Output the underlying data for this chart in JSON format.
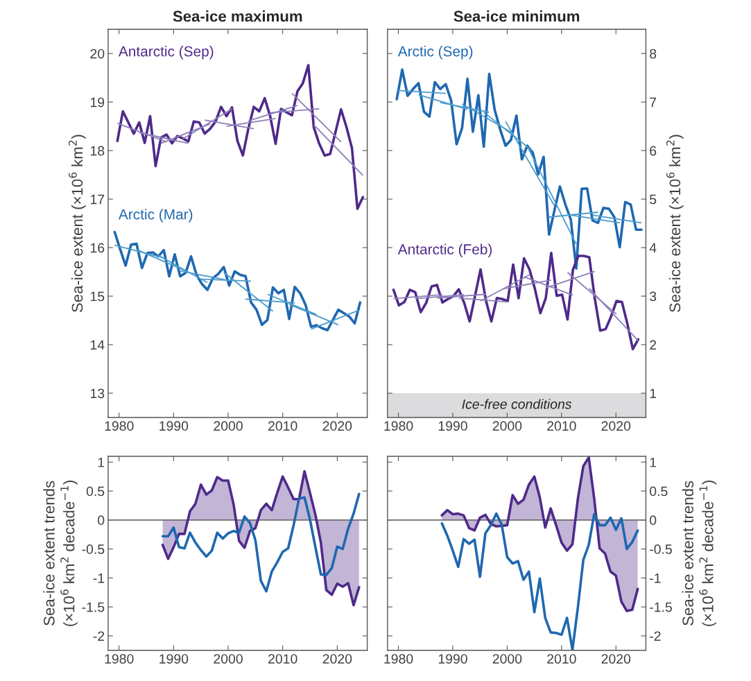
{
  "chart_data": [
    {
      "type": "line",
      "title": "Sea-ice maximum",
      "ylabel": "Sea-ice extent (×10$^{6}$ km$^{2}$)",
      "xlim": [
        1978,
        2025.5
      ],
      "ylim": [
        12.5,
        20.5
      ],
      "xticks": [
        1980,
        1990,
        2000,
        2010,
        2020
      ],
      "yticks": [
        13,
        14,
        15,
        16,
        17,
        18,
        19,
        20
      ],
      "line_style": "solid",
      "series": [
        {
          "name": "Antarctic (Sep)",
          "color": "#4f2a8a",
          "x": [
            1979.7,
            1980.7,
            1981.7,
            1982.7,
            1983.7,
            1984.7,
            1985.7,
            1986.7,
            1987.7,
            1988.7,
            1989.7,
            1990.7,
            1991.7,
            1992.7,
            1993.7,
            1994.7,
            1995.7,
            1996.7,
            1997.7,
            1998.7,
            1999.7,
            2000.7,
            2001.7,
            2002.7,
            2003.7,
            2004.7,
            2005.7,
            2006.7,
            2007.7,
            2008.7,
            2009.7,
            2010.7,
            2011.7,
            2012.7,
            2013.7,
            2014.7,
            2015.7,
            2016.7,
            2017.7,
            2018.7,
            2019.7,
            2020.7,
            2021.7,
            2022.7,
            2023.7,
            2024.7
          ],
          "values": [
            18.2,
            18.81,
            18.58,
            18.35,
            18.58,
            18.16,
            18.71,
            17.68,
            18.27,
            18.33,
            18.15,
            18.3,
            18.25,
            18.19,
            18.6,
            18.58,
            18.35,
            18.45,
            18.6,
            18.9,
            18.71,
            18.89,
            18.2,
            17.9,
            18.45,
            18.9,
            18.81,
            19.08,
            18.71,
            18.14,
            18.86,
            18.79,
            18.73,
            19.22,
            19.39,
            19.76,
            18.48,
            18.14,
            17.9,
            17.93,
            18.39,
            18.85,
            18.48,
            18.05,
            16.8,
            17.04
          ]
        },
        {
          "name": "Arctic (Mar)",
          "color": "#1f68b0",
          "x": [
            1979.2,
            1980.2,
            1981.2,
            1982.2,
            1983.2,
            1984.2,
            1985.2,
            1986.2,
            1987.2,
            1988.2,
            1989.2,
            1990.2,
            1991.2,
            1992.2,
            1993.2,
            1994.2,
            1995.2,
            1996.2,
            1997.2,
            1998.2,
            1999.2,
            2000.2,
            2001.2,
            2002.2,
            2003.2,
            2004.2,
            2005.2,
            2006.2,
            2007.2,
            2008.2,
            2009.2,
            2010.2,
            2011.2,
            2012.2,
            2013.2,
            2014.2,
            2015.2,
            2016.2,
            2017.2,
            2018.2,
            2019.2,
            2020.2,
            2021.2,
            2022.2,
            2023.2,
            2024.2
          ],
          "values": [
            16.32,
            15.97,
            15.63,
            16.06,
            16.08,
            15.58,
            15.89,
            15.9,
            15.82,
            15.95,
            15.41,
            15.86,
            15.41,
            15.48,
            15.82,
            15.44,
            15.25,
            15.13,
            15.37,
            15.46,
            15.6,
            15.22,
            15.51,
            15.44,
            15.41,
            14.87,
            14.72,
            14.41,
            14.51,
            15.18,
            15.06,
            15.13,
            14.53,
            15.19,
            15.06,
            14.82,
            14.37,
            14.4,
            14.34,
            14.3,
            14.51,
            14.72,
            14.65,
            14.58,
            14.44,
            14.87
          ]
        },
        {
          "type": "line",
          "color": "#8a80ba",
          "x": [
            1979.7,
            1988.7
          ],
          "values": [
            18.56,
            18.18
          ]
        },
        {
          "type": "line",
          "color": "#8a80ba",
          "x": [
            1983.7,
            1992.7
          ],
          "values": [
            18.37,
            18.15
          ]
        },
        {
          "type": "line",
          "color": "#8a80ba",
          "x": [
            1987.7,
            1996.7
          ],
          "values": [
            18.15,
            18.55
          ]
        },
        {
          "type": "line",
          "color": "#8a80ba",
          "x": [
            1991.7,
            2000.7
          ],
          "values": [
            18.24,
            18.86
          ]
        },
        {
          "type": "line",
          "color": "#8a80ba",
          "x": [
            1995.7,
            2004.7
          ],
          "values": [
            18.63,
            18.45
          ]
        },
        {
          "type": "line",
          "color": "#8a80ba",
          "x": [
            1999.7,
            2008.7
          ],
          "values": [
            18.5,
            18.66
          ]
        },
        {
          "type": "line",
          "color": "#8a80ba",
          "x": [
            2003.7,
            2012.7
          ],
          "values": [
            18.61,
            18.93
          ]
        },
        {
          "type": "line",
          "color": "#8a80ba",
          "x": [
            2007.7,
            2016.7
          ],
          "values": [
            18.78,
            18.86
          ]
        },
        {
          "type": "line",
          "color": "#8a80ba",
          "x": [
            2011.7,
            2020.7
          ],
          "values": [
            19.18,
            18.18
          ]
        },
        {
          "type": "line",
          "color": "#8a80ba",
          "x": [
            2015.7,
            2024.7
          ],
          "values": [
            18.53,
            17.49
          ]
        },
        {
          "type": "line",
          "color": "#4a9ccc",
          "x": [
            1979.2,
            1988.2
          ],
          "values": [
            16.05,
            15.79
          ]
        },
        {
          "type": "line",
          "color": "#4a9ccc",
          "x": [
            1983.2,
            1992.2
          ],
          "values": [
            15.96,
            15.52
          ]
        },
        {
          "type": "line",
          "color": "#4a9ccc",
          "x": [
            1987.2,
            1996.2
          ],
          "values": [
            15.84,
            15.28
          ]
        },
        {
          "type": "line",
          "color": "#4a9ccc",
          "x": [
            1991.2,
            2000.2
          ],
          "values": [
            15.52,
            15.32
          ]
        },
        {
          "type": "line",
          "color": "#4a9ccc",
          "x": [
            1995.2,
            2004.2
          ],
          "values": [
            15.35,
            15.31
          ]
        },
        {
          "type": "line",
          "color": "#4a9ccc",
          "x": [
            1999.2,
            2008.2
          ],
          "values": [
            15.49,
            14.69
          ]
        },
        {
          "type": "line",
          "color": "#4a9ccc",
          "x": [
            2003.2,
            2012.2
          ],
          "values": [
            14.94,
            14.86
          ]
        },
        {
          "type": "line",
          "color": "#4a9ccc",
          "x": [
            2007.2,
            2016.2
          ],
          "values": [
            15.04,
            14.62
          ]
        },
        {
          "type": "line",
          "color": "#4a9ccc",
          "x": [
            2011.2,
            2020.2
          ],
          "values": [
            14.83,
            14.41
          ]
        },
        {
          "type": "line",
          "color": "#4a9ccc",
          "x": [
            2015.2,
            2024.2
          ],
          "values": [
            14.32,
            14.72
          ]
        }
      ]
    },
    {
      "type": "line",
      "title": "Sea-ice minimum",
      "ylabel": "Sea-ice extent (×10$^{6}$ km$^{2}$)",
      "xlim": [
        1978,
        2025.5
      ],
      "ylim": [
        0.5,
        8.5
      ],
      "xticks": [
        1980,
        1990,
        2000,
        2010,
        2020
      ],
      "yticks": [
        1,
        2,
        3,
        4,
        5,
        6,
        7,
        8
      ],
      "line_style": "solid",
      "bands": [
        {
          "axis": "y",
          "from": 0.5,
          "to": 1,
          "label": "Ice-free conditions",
          "color": "#dcdcde"
        }
      ],
      "series": [
        {
          "name": "Arctic (Sep)",
          "color": "#1f68b0",
          "x": [
            1979.7,
            1980.7,
            1981.7,
            1982.7,
            1983.7,
            1984.7,
            1985.7,
            1986.7,
            1987.7,
            1988.7,
            1989.7,
            1990.7,
            1991.7,
            1992.7,
            1993.7,
            1994.7,
            1995.7,
            1996.7,
            1997.7,
            1998.7,
            1999.7,
            2000.7,
            2001.7,
            2002.7,
            2003.7,
            2004.7,
            2005.7,
            2006.7,
            2007.7,
            2008.7,
            2009.7,
            2010.7,
            2011.7,
            2012.7,
            2013.7,
            2014.7,
            2015.7,
            2016.7,
            2017.7,
            2018.7,
            2019.7,
            2020.7,
            2021.7,
            2022.7,
            2023.7,
            2024.7
          ],
          "values": [
            7.06,
            7.67,
            7.13,
            7.27,
            7.39,
            6.8,
            6.7,
            7.41,
            7.27,
            7.37,
            7.03,
            6.13,
            6.46,
            7.48,
            6.39,
            7.14,
            6.08,
            7.58,
            6.84,
            6.44,
            6.1,
            6.22,
            6.72,
            5.82,
            6.1,
            5.96,
            5.51,
            5.87,
            4.27,
            4.77,
            5.26,
            4.89,
            4.58,
            3.57,
            5.21,
            5.22,
            4.56,
            4.51,
            4.82,
            4.8,
            4.63,
            4.01,
            4.94,
            4.89,
            4.37,
            4.37
          ]
        },
        {
          "name": "Antarctic (Feb)",
          "color": "#4f2a8a",
          "x": [
            1979.1,
            1980.1,
            1981.1,
            1982.1,
            1983.1,
            1984.1,
            1985.1,
            1986.1,
            1987.1,
            1988.1,
            1989.1,
            1990.1,
            1991.1,
            1992.1,
            1993.1,
            1994.1,
            1995.1,
            1996.1,
            1997.1,
            1998.1,
            1999.1,
            2000.1,
            2001.1,
            2002.1,
            2003.1,
            2004.1,
            2005.1,
            2006.1,
            2007.1,
            2008.1,
            2009.1,
            2010.1,
            2011.1,
            2012.1,
            2013.1,
            2014.1,
            2015.1,
            2016.1,
            2017.1,
            2018.1,
            2019.1,
            2020.1,
            2021.1,
            2022.1,
            2023.1,
            2024.1
          ],
          "values": [
            3.13,
            2.81,
            2.88,
            3.13,
            3.08,
            2.67,
            2.86,
            3.2,
            3.23,
            2.87,
            2.94,
            3.0,
            3.14,
            2.86,
            2.48,
            3.01,
            3.55,
            2.91,
            2.48,
            2.96,
            2.94,
            2.9,
            3.65,
            2.96,
            3.78,
            3.55,
            3.15,
            2.65,
            2.96,
            3.89,
            3.01,
            3.03,
            2.52,
            3.55,
            3.83,
            3.83,
            3.8,
            2.96,
            2.29,
            2.32,
            2.58,
            2.9,
            2.88,
            2.43,
            1.91,
            2.11
          ]
        },
        {
          "type": "line",
          "color": "#4a9ccc",
          "x": [
            1979.7,
            1988.7
          ],
          "values": [
            7.24,
            7.18
          ]
        },
        {
          "type": "line",
          "color": "#4a9ccc",
          "x": [
            1983.7,
            1992.7
          ],
          "values": [
            7.15,
            6.85
          ]
        },
        {
          "type": "line",
          "color": "#4a9ccc",
          "x": [
            1987.7,
            1996.7
          ],
          "values": [
            6.99,
            6.79
          ]
        },
        {
          "type": "line",
          "color": "#4a9ccc",
          "x": [
            1991.7,
            2000.7
          ],
          "values": [
            6.96,
            6.38
          ]
        },
        {
          "type": "line",
          "color": "#4a9ccc",
          "x": [
            1995.7,
            2004.7
          ],
          "values": [
            6.79,
            5.99
          ]
        },
        {
          "type": "line",
          "color": "#4a9ccc",
          "x": [
            1999.7,
            2008.7
          ],
          "values": [
            6.6,
            4.86
          ]
        },
        {
          "type": "line",
          "color": "#4a9ccc",
          "x": [
            2003.7,
            2012.7
          ],
          "values": [
            6.09,
            4.07
          ]
        },
        {
          "type": "line",
          "color": "#4a9ccc",
          "x": [
            2007.7,
            2016.7
          ],
          "values": [
            4.63,
            4.73
          ]
        },
        {
          "type": "line",
          "color": "#4a9ccc",
          "x": [
            2011.7,
            2020.7
          ],
          "values": [
            4.67,
            4.51
          ]
        },
        {
          "type": "line",
          "color": "#4a9ccc",
          "x": [
            2015.7,
            2024.7
          ],
          "values": [
            4.67,
            4.51
          ]
        },
        {
          "type": "line",
          "color": "#8a80ba",
          "x": [
            1979.1,
            1988.1
          ],
          "values": [
            2.95,
            3.03
          ]
        },
        {
          "type": "line",
          "color": "#8a80ba",
          "x": [
            1983.1,
            1992.1
          ],
          "values": [
            2.95,
            3.03
          ]
        },
        {
          "type": "line",
          "color": "#8a80ba",
          "x": [
            1987.1,
            1996.1
          ],
          "values": [
            2.96,
            3.04
          ]
        },
        {
          "type": "line",
          "color": "#8a80ba",
          "x": [
            1991.1,
            2000.1
          ],
          "values": [
            2.96,
            2.88
          ]
        },
        {
          "type": "line",
          "color": "#8a80ba",
          "x": [
            1995.1,
            2004.1
          ],
          "values": [
            2.9,
            3.44
          ]
        },
        {
          "type": "line",
          "color": "#8a80ba",
          "x": [
            1999.1,
            2008.1
          ],
          "values": [
            3.15,
            3.33
          ]
        },
        {
          "type": "line",
          "color": "#8a80ba",
          "x": [
            2003.1,
            2012.1
          ],
          "values": [
            3.4,
            3.02
          ]
        },
        {
          "type": "line",
          "color": "#8a80ba",
          "x": [
            2007.1,
            2016.1
          ],
          "values": [
            3.17,
            3.51
          ]
        },
        {
          "type": "line",
          "color": "#8a80ba",
          "x": [
            2011.1,
            2020.1
          ],
          "values": [
            3.49,
            2.63
          ]
        },
        {
          "type": "line",
          "color": "#8a80ba",
          "x": [
            2015.1,
            2024.1
          ],
          "values": [
            3.16,
            2.08
          ]
        }
      ]
    },
    {
      "type": "line",
      "ylabel": "Sea-ice extent trends\n(×10$^{6}$ km$^{2}$ decade$^{−1}$)",
      "xlim": [
        1978,
        2025.5
      ],
      "ylim": [
        -2.25,
        1.1
      ],
      "xticks": [
        1980,
        1990,
        2000,
        2010,
        2020
      ],
      "yticks": [
        -2,
        -1.5,
        -1,
        -0.5,
        0,
        0.5,
        1
      ],
      "line_style": "solid",
      "ref_lines": [
        {
          "axis": "y",
          "value": 0,
          "color": "#6e6e6e"
        }
      ],
      "series": [
        {
          "color": "#4f2a8a",
          "lower": [
            0,
            0,
            0,
            0,
            0,
            0,
            0,
            0,
            0,
            0,
            0,
            0,
            0,
            0,
            0,
            0,
            0,
            0,
            0,
            0,
            0,
            0,
            0,
            0,
            0,
            0,
            0,
            0,
            0,
            0,
            0,
            0,
            0,
            0,
            0,
            0,
            0
          ],
          "upper": [
            -0.43,
            -0.67,
            -0.47,
            -0.24,
            -0.24,
            0.15,
            0.28,
            0.61,
            0.44,
            0.51,
            0.74,
            0.68,
            0.68,
            0.27,
            -0.36,
            -0.48,
            -0.19,
            -0.14,
            0.17,
            0.28,
            0.17,
            0.47,
            0.75,
            0.56,
            0.36,
            0.36,
            0.84,
            0.47,
            0.09,
            -0.39,
            -1.21,
            -1.29,
            -1.1,
            -1.15,
            -1.09,
            -1.47,
            -1.16
          ],
          "x": [
            1988,
            1989,
            1990,
            1991,
            1992,
            1993,
            1994,
            1995,
            1996,
            1997,
            1998,
            1999,
            2000,
            2001,
            2002,
            2003,
            2004,
            2005,
            2006,
            2007,
            2008,
            2009,
            2010,
            2011,
            2012,
            2013,
            2014,
            2015,
            2016,
            2017,
            2018,
            2019,
            2020,
            2021,
            2022,
            2023,
            2024
          ],
          "values": [
            -0.43,
            -0.67,
            -0.47,
            -0.24,
            -0.24,
            0.15,
            0.28,
            0.61,
            0.44,
            0.51,
            0.74,
            0.68,
            0.68,
            0.27,
            -0.36,
            -0.48,
            -0.19,
            -0.14,
            0.17,
            0.28,
            0.17,
            0.47,
            0.75,
            0.56,
            0.36,
            0.36,
            0.84,
            0.47,
            0.09,
            -0.39,
            -1.21,
            -1.29,
            -1.1,
            -1.15,
            -1.09,
            -1.47,
            -1.16
          ]
        },
        {
          "color": "#1f68b0",
          "x": [
            1988,
            1989,
            1990,
            1991,
            1992,
            1993,
            1994,
            1995,
            1996,
            1997,
            1998,
            1999,
            2000,
            2001,
            2002,
            2003,
            2004,
            2005,
            2006,
            2007,
            2008,
            2009,
            2010,
            2011,
            2012,
            2013,
            2014,
            2015,
            2016,
            2017,
            2018,
            2019,
            2020,
            2021,
            2022,
            2023,
            2024
          ],
          "values": [
            -0.28,
            -0.28,
            -0.13,
            -0.47,
            -0.49,
            -0.22,
            -0.39,
            -0.52,
            -0.63,
            -0.53,
            -0.22,
            -0.32,
            -0.23,
            -0.19,
            -0.22,
            0.06,
            -0.05,
            -0.35,
            -1.05,
            -1.23,
            -0.89,
            -0.73,
            -0.55,
            -0.49,
            -0.09,
            0.37,
            0.39,
            0.01,
            -0.47,
            -0.94,
            -0.95,
            -0.83,
            -0.46,
            -0.5,
            -0.15,
            0.11,
            0.45
          ]
        }
      ]
    },
    {
      "type": "line",
      "ylabel": "Sea-ice extent trends\n(×10$^{6}$ km$^{2}$ decade$^{−1}$)",
      "xlim": [
        1978,
        2025.5
      ],
      "ylim": [
        -2.25,
        1.1
      ],
      "xticks": [
        1980,
        1990,
        2000,
        2010,
        2020
      ],
      "yticks": [
        -2,
        -1.5,
        -1,
        -0.5,
        0,
        0.5,
        1
      ],
      "line_style": "solid",
      "ref_lines": [
        {
          "axis": "y",
          "value": 0,
          "color": "#6e6e6e"
        }
      ],
      "series": [
        {
          "color": "#4f2a8a",
          "lower": [
            0,
            0,
            0,
            0,
            0,
            0,
            0,
            0,
            0,
            0,
            0,
            0,
            0,
            0,
            0,
            0,
            0,
            0,
            0,
            0,
            0,
            0,
            0,
            0,
            0,
            0,
            0,
            0,
            0,
            0,
            0,
            0,
            0,
            0,
            0,
            0,
            0
          ],
          "upper": [
            0.08,
            0.17,
            0.1,
            0.11,
            0.08,
            -0.14,
            -0.18,
            0.04,
            0.09,
            -0.07,
            -0.11,
            -0.1,
            -0.09,
            0.43,
            0.28,
            0.35,
            0.61,
            0.75,
            0.39,
            -0.13,
            0.2,
            -0.09,
            -0.39,
            -0.53,
            -0.42,
            0.37,
            0.93,
            1.08,
            0.37,
            -0.49,
            -0.58,
            -0.89,
            -0.96,
            -1.41,
            -1.57,
            -1.55,
            -1.19
          ],
          "x": [
            1988,
            1989,
            1990,
            1991,
            1992,
            1993,
            1994,
            1995,
            1996,
            1997,
            1998,
            1999,
            2000,
            2001,
            2002,
            2003,
            2004,
            2005,
            2006,
            2007,
            2008,
            2009,
            2010,
            2011,
            2012,
            2013,
            2014,
            2015,
            2016,
            2017,
            2018,
            2019,
            2020,
            2021,
            2022,
            2023,
            2024
          ],
          "values": [
            0.08,
            0.17,
            0.1,
            0.11,
            0.08,
            -0.14,
            -0.18,
            0.04,
            0.09,
            -0.07,
            -0.11,
            -0.1,
            -0.09,
            0.43,
            0.28,
            0.35,
            0.61,
            0.75,
            0.39,
            -0.13,
            0.2,
            -0.09,
            -0.39,
            -0.53,
            -0.42,
            0.37,
            0.93,
            1.08,
            0.37,
            -0.49,
            -0.58,
            -0.89,
            -0.96,
            -1.41,
            -1.57,
            -1.55,
            -1.19
          ]
        },
        {
          "color": "#1f68b0",
          "x": [
            1988,
            1989,
            1990,
            1991,
            1992,
            1993,
            1994,
            1995,
            1996,
            1997,
            1998,
            1999,
            2000,
            2001,
            2002,
            2003,
            2004,
            2005,
            2006,
            2007,
            2008,
            2009,
            2010,
            2011,
            2012,
            2013,
            2014,
            2015,
            2016,
            2017,
            2018,
            2019,
            2020,
            2021,
            2022,
            2023,
            2024
          ],
          "values": [
            -0.06,
            -0.27,
            -0.53,
            -0.81,
            -0.33,
            -0.41,
            -0.34,
            -0.98,
            -0.23,
            -0.09,
            0.11,
            -0.08,
            -0.64,
            -0.75,
            -0.71,
            -1.03,
            -0.89,
            -1.59,
            -1.01,
            -1.69,
            -1.94,
            -1.95,
            -1.98,
            -1.69,
            -2.24,
            -1.51,
            -0.69,
            -0.43,
            0.1,
            -0.09,
            -0.09,
            0.04,
            -0.17,
            0.03,
            -0.5,
            -0.38,
            -0.18
          ]
        }
      ]
    }
  ]
}
